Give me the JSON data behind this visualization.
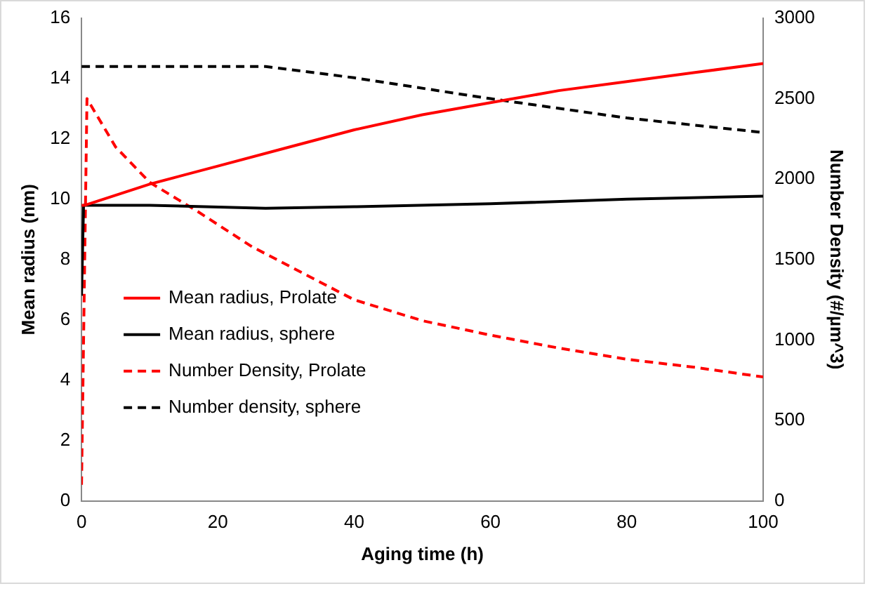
{
  "chart_data": {
    "type": "line",
    "xlabel": "Aging time (h)",
    "ylabel": "Mean radius (nm)",
    "y2label": "Number Density (#/µm^3)",
    "xlim": [
      0,
      100
    ],
    "xticks": [
      0,
      20,
      40,
      60,
      80,
      100
    ],
    "ylim": [
      0,
      16
    ],
    "yticks": [
      0,
      2,
      4,
      6,
      8,
      10,
      12,
      14,
      16
    ],
    "y2lim": [
      0,
      3000
    ],
    "y2ticks": [
      0,
      500,
      1000,
      1500,
      2000,
      2500,
      3000
    ],
    "grid": false,
    "legend": "left",
    "marker": "none",
    "series": [
      {
        "name": "Mean radius, Prolate",
        "color": "#ff0000",
        "line_style": "solid",
        "x": [
          0,
          0.5,
          10,
          20,
          30,
          40,
          50,
          60,
          70,
          80,
          90,
          100
        ],
        "values": [
          9.8,
          9.8,
          10.5,
          11.1,
          11.7,
          12.3,
          12.8,
          13.2,
          13.6,
          13.9,
          14.2,
          14.5
        ]
      },
      {
        "name": "Mean radius, sphere",
        "color": "#000000",
        "line_style": "solid",
        "x": [
          0,
          0.3,
          10,
          27,
          40,
          60,
          80,
          100
        ],
        "values": [
          6.8,
          9.8,
          9.8,
          9.7,
          9.75,
          9.85,
          10.0,
          10.1
        ]
      },
      {
        "name": "Number Density, Prolate",
        "color": "#ff0000",
        "line_style": "dashed",
        "axis": "y2",
        "x": [
          0,
          0.8,
          5,
          10,
          17,
          25,
          40,
          50,
          60,
          70,
          80,
          90,
          100
        ],
        "values": [
          100,
          2500,
          2200,
          1980,
          1800,
          1580,
          1250,
          1120,
          1030,
          950,
          880,
          830,
          770
        ]
      },
      {
        "name": "Number density, sphere",
        "color": "#000000",
        "line_style": "dashed",
        "axis": "y2",
        "x": [
          0,
          1,
          10,
          27,
          40,
          60,
          80,
          100
        ],
        "values": [
          2700,
          2700,
          2700,
          2700,
          2630,
          2500,
          2380,
          2290
        ]
      }
    ]
  }
}
